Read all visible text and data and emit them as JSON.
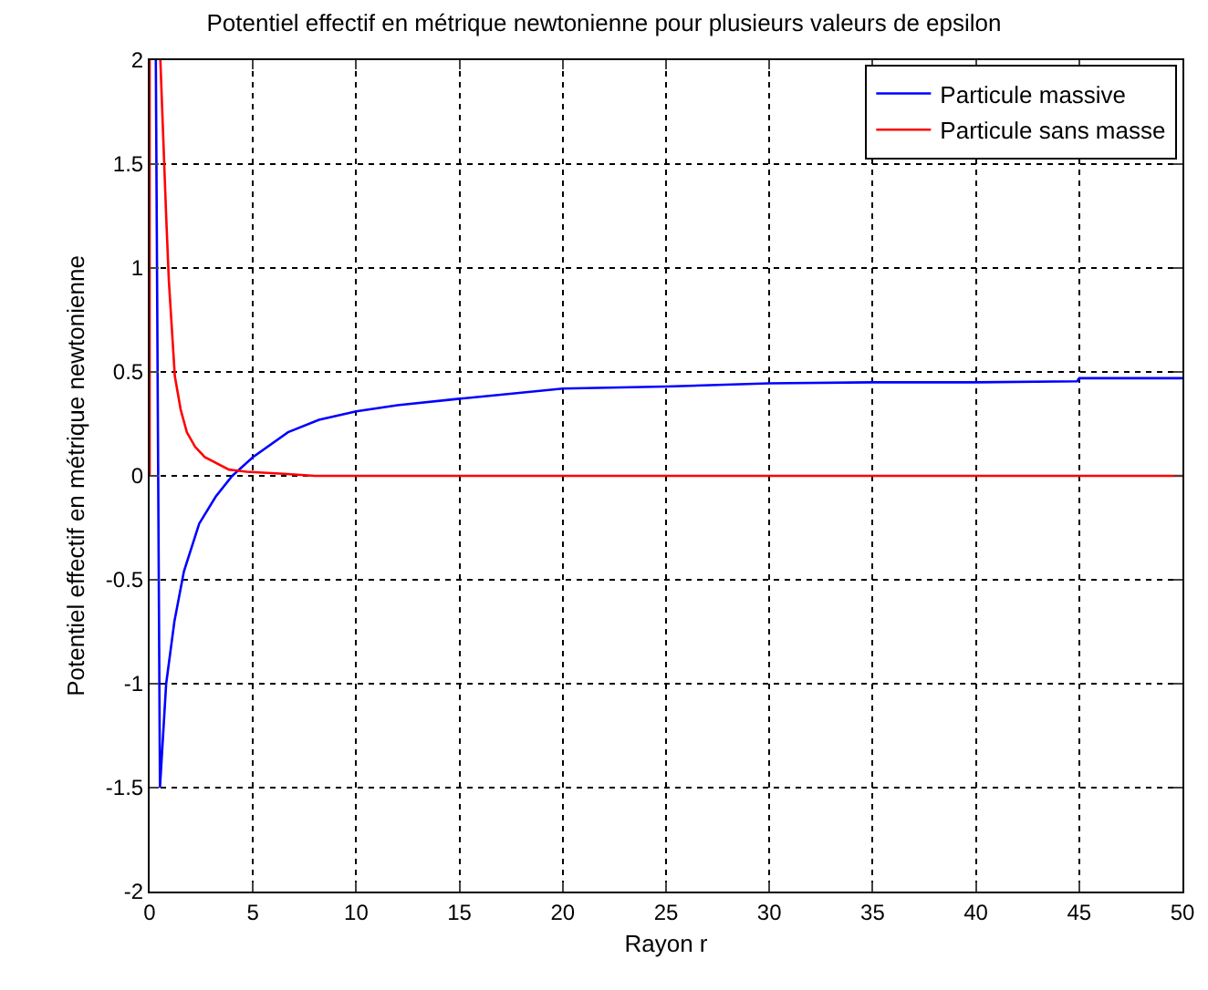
{
  "chart_data": {
    "type": "line",
    "title": "Potentiel effectif en métrique newtonienne pour plusieurs valeurs de epsilon",
    "xlabel": "Rayon r",
    "ylabel": "Potentiel effectif en métrique newtonienne",
    "xlim": [
      0,
      50
    ],
    "ylim": [
      -2,
      2
    ],
    "xticks": [
      0,
      5,
      10,
      15,
      20,
      25,
      30,
      35,
      40,
      45,
      50
    ],
    "yticks": [
      -2,
      -1.5,
      -1,
      -0.5,
      0,
      0.5,
      1,
      1.5,
      2
    ],
    "grid": true,
    "legend": "top right",
    "line_style": "solid",
    "marker": "none",
    "series": [
      {
        "name": "Particule massive",
        "color": "#0000ff",
        "x": [
          0.3,
          0.5,
          0.8,
          1.2,
          1.66,
          2.4,
          3.2,
          4,
          5,
          6.7,
          8.2,
          10,
          12,
          14.9,
          17,
          20,
          25,
          30,
          35,
          40,
          44.9,
          45,
          50
        ],
        "values": [
          2,
          -1.5,
          -1.0,
          -0.7,
          -0.46,
          -0.23,
          -0.1,
          0,
          0.09,
          0.21,
          0.27,
          0.31,
          0.34,
          0.37,
          0.39,
          0.42,
          0.43,
          0.445,
          0.45,
          0.45,
          0.455,
          0.47,
          0.47
        ]
      },
      {
        "name": "Particule sans masse",
        "color": "#ff0000",
        "x": [
          0,
          0,
          null,
          0.52,
          0.64,
          0.8,
          0.93,
          1.22,
          1.5,
          1.8,
          2.2,
          2.67,
          3.84,
          4.7,
          6.5,
          8,
          50
        ],
        "values": [
          0,
          2,
          null,
          2,
          1.68,
          1.25,
          0.94,
          0.48,
          0.32,
          0.21,
          0.14,
          0.09,
          0.03,
          0.02,
          0.01,
          0,
          0
        ]
      }
    ]
  }
}
